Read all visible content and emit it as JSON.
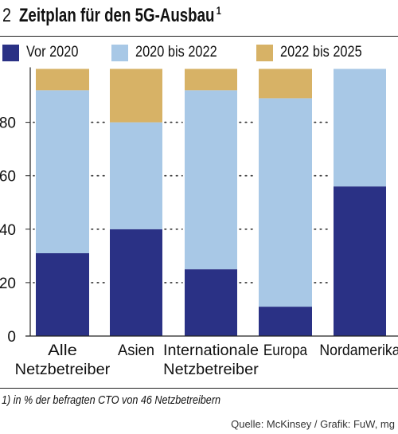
{
  "header": {
    "number": "2",
    "title": "Zeitplan für den 5G-Ausbau",
    "footnote_marker": "1"
  },
  "footnote": "1) in % der befragten CTO von 46 Netzbetreibern",
  "source": "Quelle: McKinsey / Grafik: FuW, mg",
  "colors": {
    "vor2020": "#2a3185",
    "bis2022": "#a8c8e6",
    "bis2025": "#d7b266"
  },
  "chart_data": {
    "type": "bar",
    "stacked": true,
    "ylim": [
      0,
      100
    ],
    "yticks": [
      0,
      20,
      40,
      60,
      80
    ],
    "grid": "dotted",
    "legend": "top",
    "categories": [
      [
        "Alle",
        "Netzbetreiber"
      ],
      [
        "Asien"
      ],
      [
        "Internationale",
        "Netzbetreiber"
      ],
      [
        "Europa"
      ],
      [
        "Nordamerika"
      ]
    ],
    "series": [
      {
        "name": "Vor 2020",
        "color": "#2a3185",
        "values": [
          31,
          40,
          25,
          11,
          56
        ]
      },
      {
        "name": "2020 bis 2022",
        "color": "#a8c8e6",
        "values": [
          61,
          40,
          67,
          78,
          44
        ]
      },
      {
        "name": "2022 bis 2025",
        "color": "#d7b266",
        "values": [
          8,
          20,
          8,
          11,
          0
        ]
      }
    ]
  }
}
